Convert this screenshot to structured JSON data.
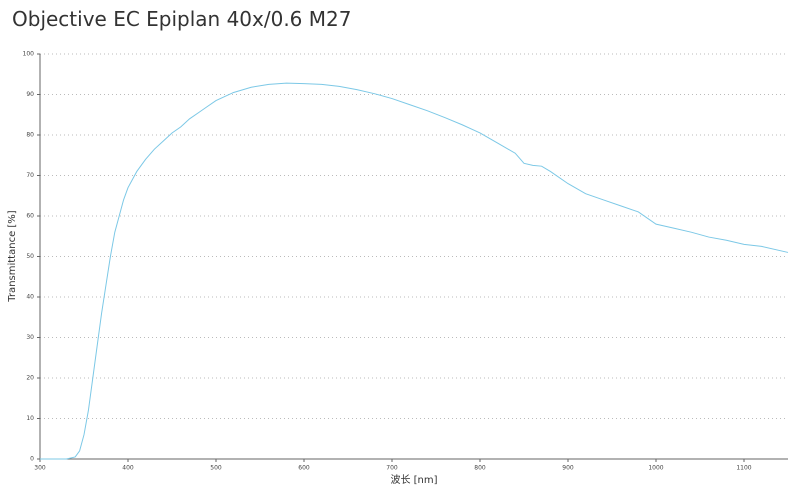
{
  "chart_data": {
    "type": "line",
    "title": "Objective EC Epiplan 40x/0.6 M27",
    "x_label": "波长 [nm]",
    "y_label": "Transmittance [%]",
    "x": [
      300,
      330,
      340,
      345,
      350,
      355,
      360,
      365,
      370,
      375,
      380,
      385,
      390,
      395,
      400,
      410,
      420,
      430,
      440,
      450,
      460,
      470,
      480,
      490,
      500,
      520,
      540,
      560,
      580,
      600,
      620,
      640,
      660,
      680,
      700,
      720,
      740,
      760,
      780,
      800,
      820,
      840,
      850,
      860,
      870,
      880,
      900,
      920,
      940,
      960,
      980,
      1000,
      1020,
      1040,
      1060,
      1080,
      1100,
      1120,
      1150
    ],
    "series": [
      {
        "name": "Transmittance",
        "color": "#7cc8e6",
        "values": [
          0,
          0,
          0.5,
          2,
          6,
          12,
          20,
          28,
          36,
          43,
          50,
          56,
          60,
          64,
          67,
          71,
          74,
          76.5,
          78.5,
          80.5,
          82,
          84,
          85.5,
          87,
          88.5,
          90.5,
          91.8,
          92.5,
          92.8,
          92.7,
          92.5,
          92,
          91.2,
          90.2,
          89,
          87.5,
          86,
          84.3,
          82.5,
          80.5,
          78,
          75.5,
          73,
          72.5,
          72.3,
          71,
          68,
          65.5,
          64,
          62.5,
          61,
          58,
          57,
          56,
          54.8,
          54,
          53,
          52.5,
          51
        ]
      }
    ],
    "xlim": [
      300,
      1150
    ],
    "ylim": [
      0,
      100
    ],
    "xticks": [
      300,
      400,
      500,
      600,
      700,
      800,
      900,
      1000,
      1100
    ],
    "yticks": [
      0,
      10,
      20,
      30,
      40,
      50,
      60,
      70,
      80,
      90,
      100
    ],
    "grid": true
  }
}
